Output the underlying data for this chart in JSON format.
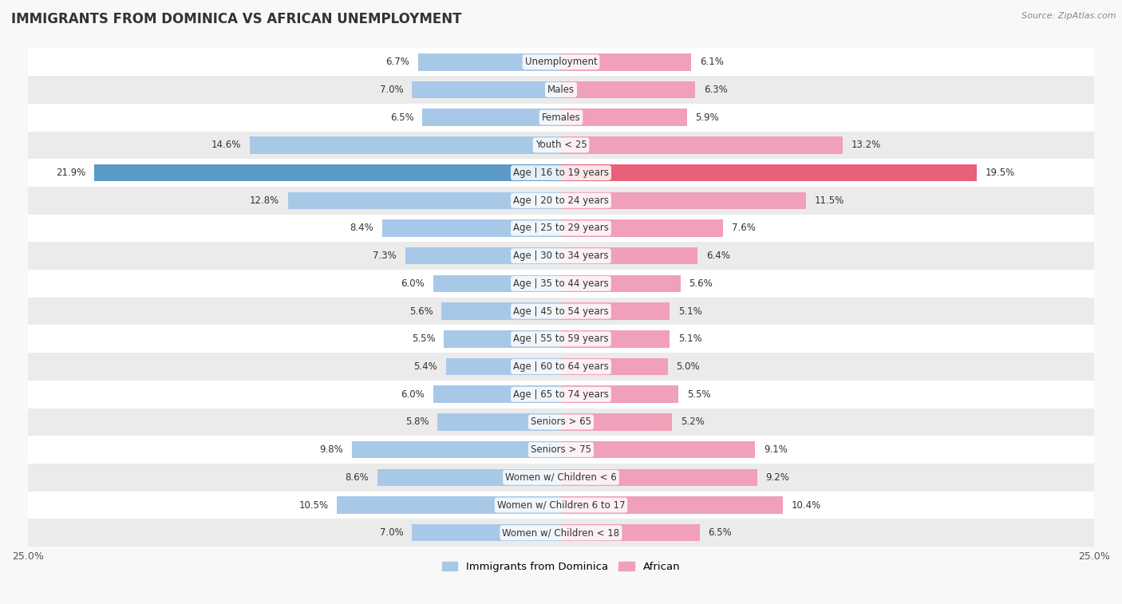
{
  "title": "IMMIGRANTS FROM DOMINICA VS AFRICAN UNEMPLOYMENT",
  "source": "Source: ZipAtlas.com",
  "categories": [
    "Unemployment",
    "Males",
    "Females",
    "Youth < 25",
    "Age | 16 to 19 years",
    "Age | 20 to 24 years",
    "Age | 25 to 29 years",
    "Age | 30 to 34 years",
    "Age | 35 to 44 years",
    "Age | 45 to 54 years",
    "Age | 55 to 59 years",
    "Age | 60 to 64 years",
    "Age | 65 to 74 years",
    "Seniors > 65",
    "Seniors > 75",
    "Women w/ Children < 6",
    "Women w/ Children 6 to 17",
    "Women w/ Children < 18"
  ],
  "dominica_values": [
    6.7,
    7.0,
    6.5,
    14.6,
    21.9,
    12.8,
    8.4,
    7.3,
    6.0,
    5.6,
    5.5,
    5.4,
    6.0,
    5.8,
    9.8,
    8.6,
    10.5,
    7.0
  ],
  "african_values": [
    6.1,
    6.3,
    5.9,
    13.2,
    19.5,
    11.5,
    7.6,
    6.4,
    5.6,
    5.1,
    5.1,
    5.0,
    5.5,
    5.2,
    9.1,
    9.2,
    10.4,
    6.5
  ],
  "dominica_color": "#A8C8E8",
  "african_color": "#F0A0B8",
  "dominica_highlight_color": "#5B9AC8",
  "african_highlight_color": "#E8607A",
  "highlight_rows": [
    4
  ],
  "axis_limit": 25.0,
  "background_color": "#f8f8f8",
  "row_color_even": "#ffffff",
  "row_color_odd": "#ebebeb",
  "label_fontsize": 8.5,
  "title_fontsize": 12,
  "legend_label_dominica": "Immigrants from Dominica",
  "legend_label_african": "African"
}
